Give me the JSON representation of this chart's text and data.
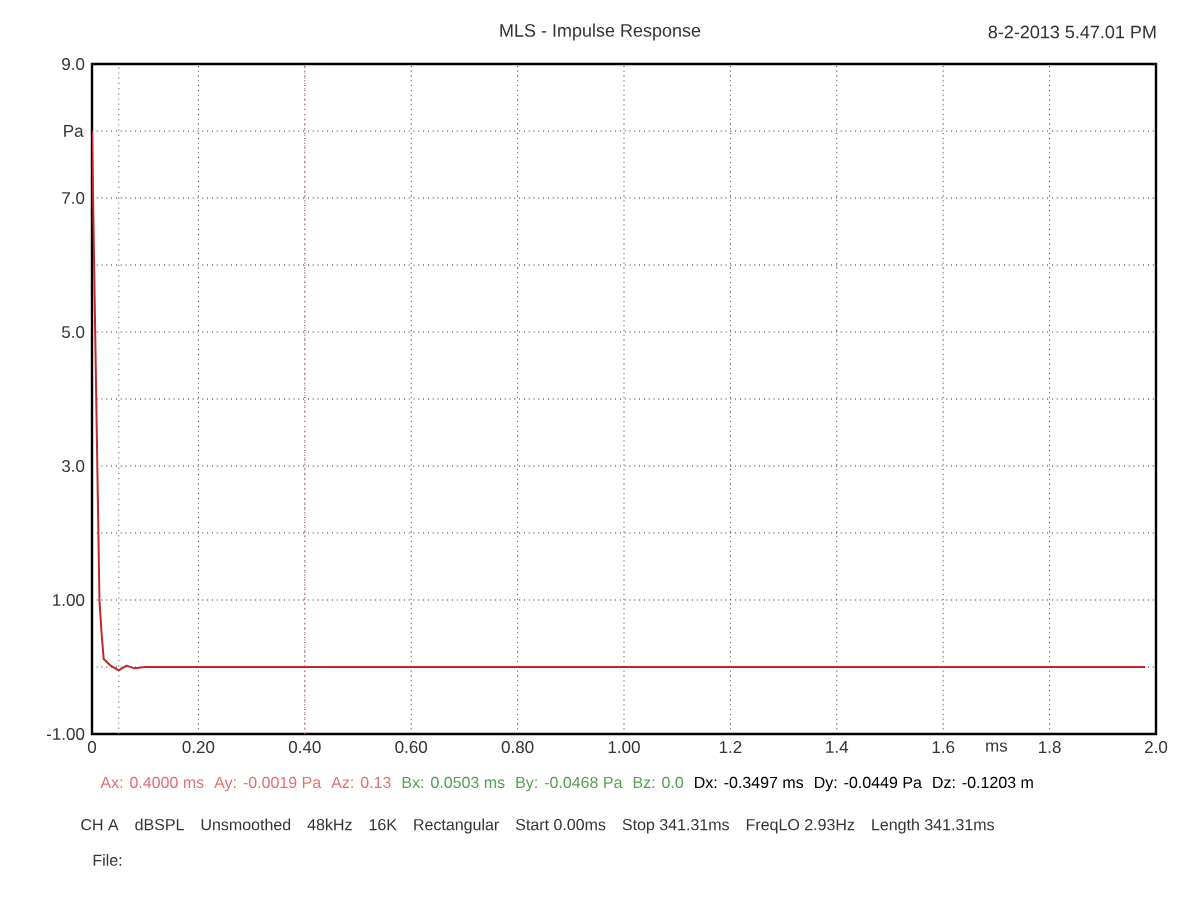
{
  "chart_data": {
    "type": "line",
    "title": "MLS - Impulse Response",
    "xlabel": "ms",
    "ylabel": "Pa",
    "x": [
      0,
      0.002,
      0.006,
      0.01,
      0.014,
      0.018,
      0.022,
      0.035,
      0.05,
      0.065,
      0.08,
      0.1,
      0.5,
      1.0,
      1.5,
      1.98
    ],
    "series": [
      {
        "color": "#c0282d",
        "values": [
          8.0,
          7.0,
          5.0,
          3.0,
          1.0,
          0.5,
          0.12,
          0.02,
          -0.05,
          0.02,
          -0.02,
          0,
          0,
          0,
          0,
          0
        ]
      }
    ],
    "xlim": [
      0,
      2
    ],
    "ylim": [
      -1,
      9
    ],
    "xticks": [
      0,
      {
        "value": 0.2,
        "label": "0.20"
      },
      {
        "value": 0.4,
        "label": "0.40"
      },
      {
        "value": 0.6,
        "label": "0.60"
      },
      {
        "value": 0.8,
        "label": "0.80"
      },
      {
        "value": 1,
        "label": "1.00"
      },
      1.2,
      1.4,
      1.6,
      1.8,
      {
        "value": 2,
        "label": "2.0"
      }
    ],
    "yticks": [
      {
        "value": -1,
        "label": "-1.00"
      },
      {
        "value": 0,
        "label": null
      },
      {
        "value": 1,
        "label": "1.00"
      },
      {
        "value": 2,
        "label": null
      },
      {
        "value": 3,
        "label": "3.0"
      },
      {
        "value": 4,
        "label": null
      },
      {
        "value": 5,
        "label": "5.0"
      },
      {
        "value": 6,
        "label": null
      },
      {
        "value": 7,
        "label": "7.0"
      },
      {
        "value": 8,
        "label": null
      },
      {
        "value": 9,
        "label": "9.0"
      }
    ],
    "grid": true,
    "ref_lines": [
      {
        "axis": "x",
        "value": 0.4,
        "color": "#e07070",
        "line_style": "dotted"
      },
      {
        "axis": "x",
        "value": 0.0503,
        "color": "#50a050",
        "line_style": "dotted"
      }
    ],
    "annotations": [
      "8-2-2013 5.47.01 PM",
      "Ax: 0.4000 ms",
      "Ay: -0.0019 Pa",
      "Az: 0.13",
      "Bx: 0.0503 ms",
      "By: -0.0468 Pa",
      "Bz: 0.0",
      "Dx: -0.3497 ms",
      "Dy: -0.0449 Pa",
      "Dz: -0.1203 m",
      "CH A",
      "dBSPL",
      "Unsmoothed",
      "48kHz",
      "16K",
      "Rectangular",
      "Start 0.00ms",
      "Stop 341.31ms",
      "FreqLO 2.93Hz",
      "Length 341.31ms",
      "File:"
    ]
  }
}
